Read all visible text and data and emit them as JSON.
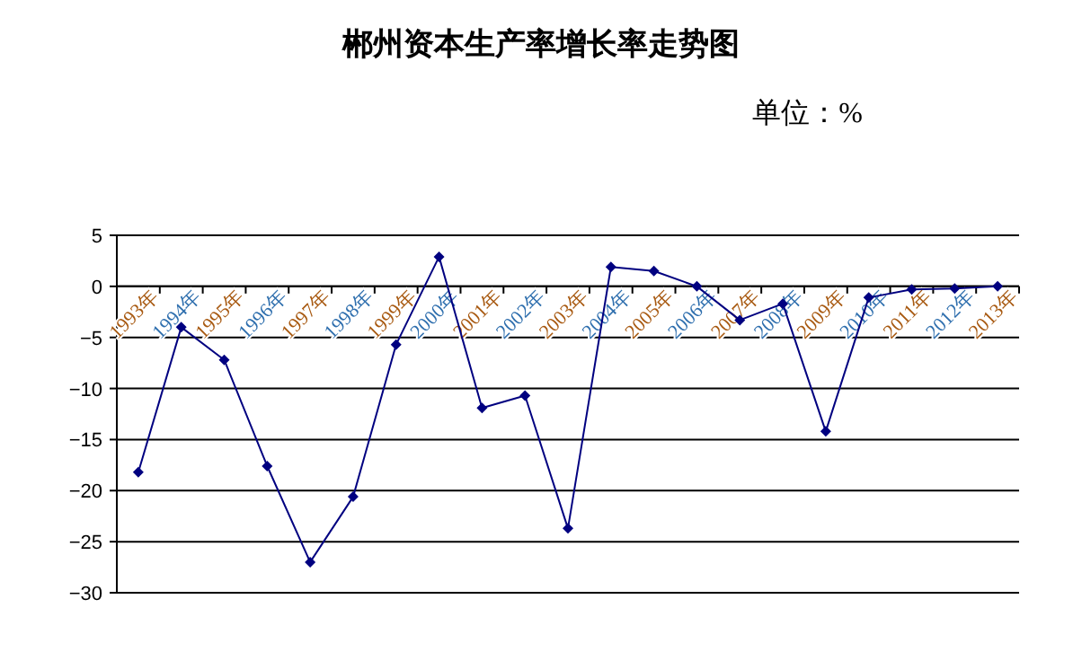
{
  "chart_data": {
    "type": "line",
    "title": "郴州资本生产率增长率走势图",
    "annotations": [
      "单位：%"
    ],
    "categories": [
      "1993年",
      "1994年",
      "1995年",
      "1996年",
      "1997年",
      "1998年",
      "1999年",
      "2000年",
      "2001年",
      "2002年",
      "2003年",
      "2004年",
      "2005年",
      "2006年",
      "2007年",
      "2008年",
      "2009年",
      "2010年",
      "2011年",
      "2012年",
      "2013年"
    ],
    "series": [
      {
        "color": "#000080",
        "values": [
          -18.2,
          -4.0,
          -7.2,
          -17.6,
          -27.0,
          -20.6,
          -5.7,
          2.9,
          -11.9,
          -10.7,
          -23.7,
          1.9,
          1.5,
          0,
          -3.3,
          -1.7,
          -14.2,
          -1.1,
          -0.3,
          -0.2,
          0
        ]
      }
    ],
    "ylim": [
      -30,
      5
    ],
    "yticks": [
      -30,
      -25,
      -20,
      -15,
      -10,
      -5,
      0,
      5
    ],
    "grid": "y",
    "marker": "diamond",
    "line_style": "solid"
  }
}
